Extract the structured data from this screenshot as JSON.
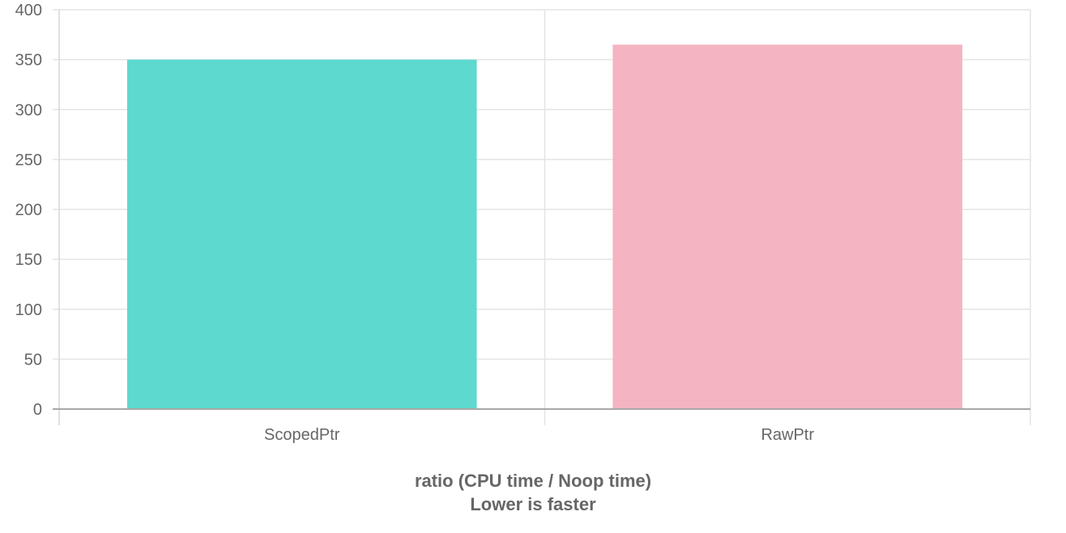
{
  "chart_data": {
    "type": "bar",
    "categories": [
      "ScopedPtr",
      "RawPtr"
    ],
    "values": [
      350,
      365
    ],
    "colors": [
      "#5ed9cf",
      "#f5b4c2"
    ],
    "ylim": [
      0,
      400
    ],
    "yticks": [
      0,
      50,
      100,
      150,
      200,
      250,
      300,
      350,
      400
    ],
    "xlabel": "ratio (CPU time / Noop time)",
    "subtitle": "Lower is faster",
    "ylabel": "",
    "grid": true,
    "legend": "none"
  }
}
